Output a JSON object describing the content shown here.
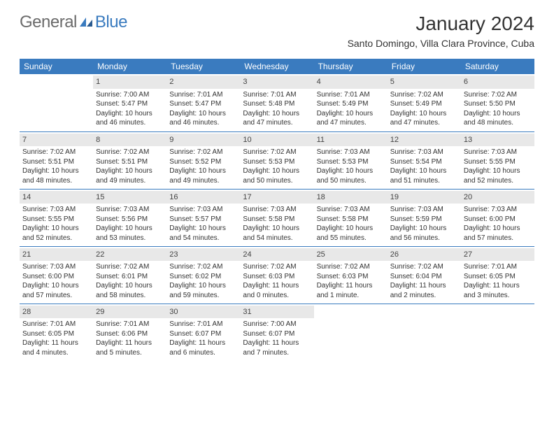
{
  "logo": {
    "general": "General",
    "blue": "Blue"
  },
  "title": "January 2024",
  "location": "Santo Domingo, Villa Clara Province, Cuba",
  "colors": {
    "header_bg": "#3a7bbf",
    "header_fg": "#ffffff",
    "daybar_bg": "#e8e8e8",
    "border": "#3a7bbf",
    "text": "#333333",
    "logo_gray": "#6b6b6b"
  },
  "fonts": {
    "title_size": 28,
    "location_size": 14,
    "header_size": 12,
    "cell_size": 10,
    "daynum_size": 11
  },
  "weekdays": [
    "Sunday",
    "Monday",
    "Tuesday",
    "Wednesday",
    "Thursday",
    "Friday",
    "Saturday"
  ],
  "weeks": [
    [
      null,
      {
        "d": "1",
        "sr": "Sunrise: 7:00 AM",
        "ss": "Sunset: 5:47 PM",
        "dl": "Daylight: 10 hours and 46 minutes."
      },
      {
        "d": "2",
        "sr": "Sunrise: 7:01 AM",
        "ss": "Sunset: 5:47 PM",
        "dl": "Daylight: 10 hours and 46 minutes."
      },
      {
        "d": "3",
        "sr": "Sunrise: 7:01 AM",
        "ss": "Sunset: 5:48 PM",
        "dl": "Daylight: 10 hours and 47 minutes."
      },
      {
        "d": "4",
        "sr": "Sunrise: 7:01 AM",
        "ss": "Sunset: 5:49 PM",
        "dl": "Daylight: 10 hours and 47 minutes."
      },
      {
        "d": "5",
        "sr": "Sunrise: 7:02 AM",
        "ss": "Sunset: 5:49 PM",
        "dl": "Daylight: 10 hours and 47 minutes."
      },
      {
        "d": "6",
        "sr": "Sunrise: 7:02 AM",
        "ss": "Sunset: 5:50 PM",
        "dl": "Daylight: 10 hours and 48 minutes."
      }
    ],
    [
      {
        "d": "7",
        "sr": "Sunrise: 7:02 AM",
        "ss": "Sunset: 5:51 PM",
        "dl": "Daylight: 10 hours and 48 minutes."
      },
      {
        "d": "8",
        "sr": "Sunrise: 7:02 AM",
        "ss": "Sunset: 5:51 PM",
        "dl": "Daylight: 10 hours and 49 minutes."
      },
      {
        "d": "9",
        "sr": "Sunrise: 7:02 AM",
        "ss": "Sunset: 5:52 PM",
        "dl": "Daylight: 10 hours and 49 minutes."
      },
      {
        "d": "10",
        "sr": "Sunrise: 7:02 AM",
        "ss": "Sunset: 5:53 PM",
        "dl": "Daylight: 10 hours and 50 minutes."
      },
      {
        "d": "11",
        "sr": "Sunrise: 7:03 AM",
        "ss": "Sunset: 5:53 PM",
        "dl": "Daylight: 10 hours and 50 minutes."
      },
      {
        "d": "12",
        "sr": "Sunrise: 7:03 AM",
        "ss": "Sunset: 5:54 PM",
        "dl": "Daylight: 10 hours and 51 minutes."
      },
      {
        "d": "13",
        "sr": "Sunrise: 7:03 AM",
        "ss": "Sunset: 5:55 PM",
        "dl": "Daylight: 10 hours and 52 minutes."
      }
    ],
    [
      {
        "d": "14",
        "sr": "Sunrise: 7:03 AM",
        "ss": "Sunset: 5:55 PM",
        "dl": "Daylight: 10 hours and 52 minutes."
      },
      {
        "d": "15",
        "sr": "Sunrise: 7:03 AM",
        "ss": "Sunset: 5:56 PM",
        "dl": "Daylight: 10 hours and 53 minutes."
      },
      {
        "d": "16",
        "sr": "Sunrise: 7:03 AM",
        "ss": "Sunset: 5:57 PM",
        "dl": "Daylight: 10 hours and 54 minutes."
      },
      {
        "d": "17",
        "sr": "Sunrise: 7:03 AM",
        "ss": "Sunset: 5:58 PM",
        "dl": "Daylight: 10 hours and 54 minutes."
      },
      {
        "d": "18",
        "sr": "Sunrise: 7:03 AM",
        "ss": "Sunset: 5:58 PM",
        "dl": "Daylight: 10 hours and 55 minutes."
      },
      {
        "d": "19",
        "sr": "Sunrise: 7:03 AM",
        "ss": "Sunset: 5:59 PM",
        "dl": "Daylight: 10 hours and 56 minutes."
      },
      {
        "d": "20",
        "sr": "Sunrise: 7:03 AM",
        "ss": "Sunset: 6:00 PM",
        "dl": "Daylight: 10 hours and 57 minutes."
      }
    ],
    [
      {
        "d": "21",
        "sr": "Sunrise: 7:03 AM",
        "ss": "Sunset: 6:00 PM",
        "dl": "Daylight: 10 hours and 57 minutes."
      },
      {
        "d": "22",
        "sr": "Sunrise: 7:02 AM",
        "ss": "Sunset: 6:01 PM",
        "dl": "Daylight: 10 hours and 58 minutes."
      },
      {
        "d": "23",
        "sr": "Sunrise: 7:02 AM",
        "ss": "Sunset: 6:02 PM",
        "dl": "Daylight: 10 hours and 59 minutes."
      },
      {
        "d": "24",
        "sr": "Sunrise: 7:02 AM",
        "ss": "Sunset: 6:03 PM",
        "dl": "Daylight: 11 hours and 0 minutes."
      },
      {
        "d": "25",
        "sr": "Sunrise: 7:02 AM",
        "ss": "Sunset: 6:03 PM",
        "dl": "Daylight: 11 hours and 1 minute."
      },
      {
        "d": "26",
        "sr": "Sunrise: 7:02 AM",
        "ss": "Sunset: 6:04 PM",
        "dl": "Daylight: 11 hours and 2 minutes."
      },
      {
        "d": "27",
        "sr": "Sunrise: 7:01 AM",
        "ss": "Sunset: 6:05 PM",
        "dl": "Daylight: 11 hours and 3 minutes."
      }
    ],
    [
      {
        "d": "28",
        "sr": "Sunrise: 7:01 AM",
        "ss": "Sunset: 6:05 PM",
        "dl": "Daylight: 11 hours and 4 minutes."
      },
      {
        "d": "29",
        "sr": "Sunrise: 7:01 AM",
        "ss": "Sunset: 6:06 PM",
        "dl": "Daylight: 11 hours and 5 minutes."
      },
      {
        "d": "30",
        "sr": "Sunrise: 7:01 AM",
        "ss": "Sunset: 6:07 PM",
        "dl": "Daylight: 11 hours and 6 minutes."
      },
      {
        "d": "31",
        "sr": "Sunrise: 7:00 AM",
        "ss": "Sunset: 6:07 PM",
        "dl": "Daylight: 11 hours and 7 minutes."
      },
      null,
      null,
      null
    ]
  ]
}
